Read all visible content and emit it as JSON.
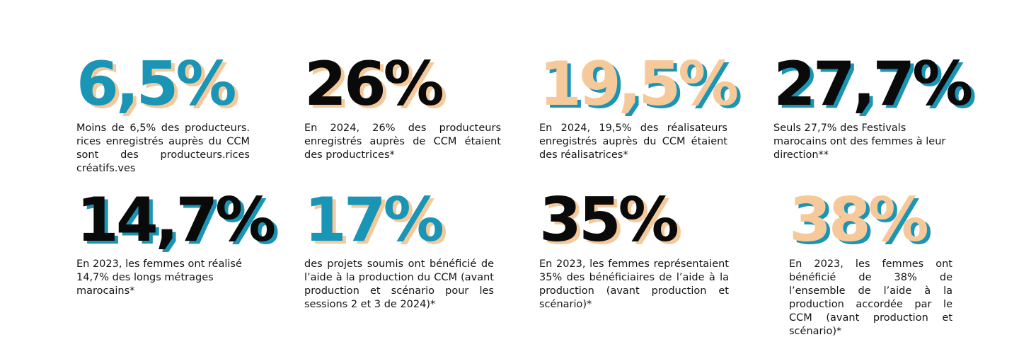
{
  "colors": {
    "teal": "#1a95b5",
    "black": "#0a0a0a",
    "peach": "#f6c99a"
  },
  "stats": [
    {
      "value": "6,5%",
      "text": "Moins de 6,5% des producteurs. rices enregistrés auprès du CCM sont des producteurs.rices créatifs.ves"
    },
    {
      "value": "26%",
      "text": "En 2024, 26% des producteurs enregistrés auprès de CCM étaient des productrices*"
    },
    {
      "value": "19,5%",
      "text": "En 2024, 19,5% des réalisateurs enregistrés auprès du CCM étaient des réalisatrices*"
    },
    {
      "value": "27,7%",
      "text": "Seuls 27,7% des Festivals marocains ont des femmes à leur direction**"
    },
    {
      "value": "14,7%",
      "text": "En 2023, les femmes ont réalisé 14,7% des longs métrages marocains*"
    },
    {
      "value": "17%",
      "text": "des projets soumis ont bénéficié de l’aide à la production du CCM (avant production et scénario pour les sessions 2 et 3 de 2024)*"
    },
    {
      "value": "35%",
      "text": "En 2023, les femmes représentaient 35% des bénéficiaires de l’aide à la production (avant production et scénario)*"
    },
    {
      "value": "38%",
      "text": "En 2023, les femmes ont bénéficié de 38% de l’ensemble de l’aide à la production accordée par le CCM (avant production et scénario)*"
    }
  ]
}
